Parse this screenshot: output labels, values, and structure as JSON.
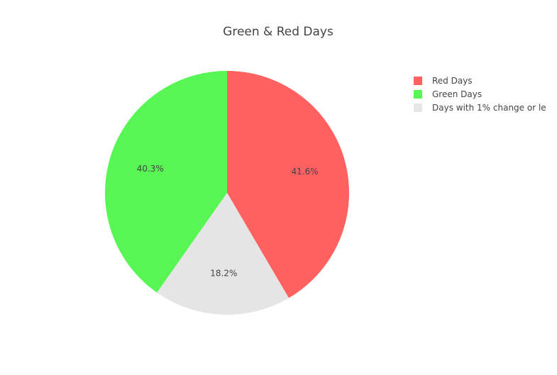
{
  "chart_data": {
    "type": "pie",
    "title": "Green & Red Days",
    "slices": [
      {
        "label": "Red Days",
        "value": 41.6,
        "text": "41.6%",
        "color": "#ff6161"
      },
      {
        "label": "Green Days",
        "value": 40.3,
        "text": "40.3%",
        "color": "#57f654"
      },
      {
        "label": "Days with 1% change or le",
        "value": 18.2,
        "text": "18.2%",
        "color": "#e5e5e5"
      }
    ],
    "slice_order": [
      "Red Days",
      "Days with 1% change or le",
      "Green Days"
    ],
    "direction": "clockwise",
    "start": "12 o'clock",
    "legend_position": "top-right"
  }
}
